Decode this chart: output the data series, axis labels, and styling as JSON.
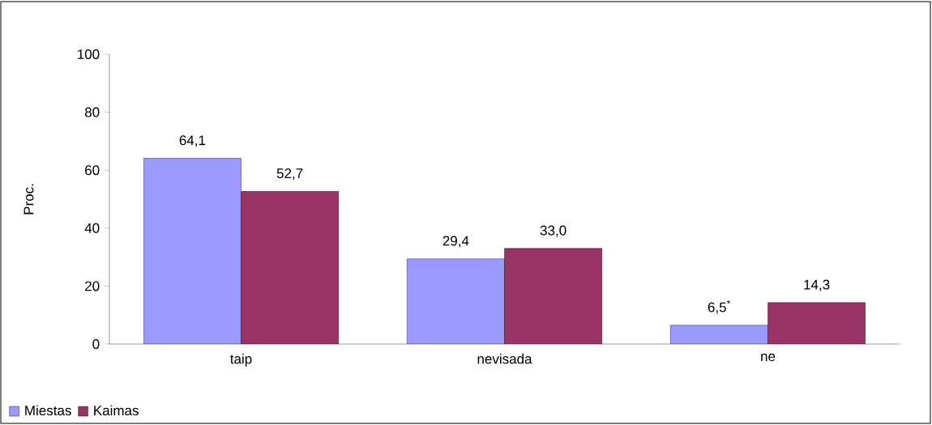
{
  "chart_data": {
    "type": "bar",
    "ylabel": "Proc.",
    "categories": [
      "taip",
      "nevisada",
      "ne"
    ],
    "series": [
      {
        "name": "Miestas",
        "color": "#9999ff",
        "values": [
          64.1,
          29.4,
          6.5
        ],
        "value_labels": [
          "64,1",
          "29,4",
          "6,5$^{*}$"
        ]
      },
      {
        "name": "Kaimas",
        "color": "#993366",
        "values": [
          52.7,
          33.0,
          14.3
        ],
        "value_labels": [
          "52,7",
          "33,0",
          "14,3"
        ]
      }
    ],
    "ylim": [
      0,
      100
    ],
    "yticks": [
      0,
      20,
      40,
      60,
      80,
      100
    ],
    "grid": false,
    "legend": "bottom left"
  }
}
